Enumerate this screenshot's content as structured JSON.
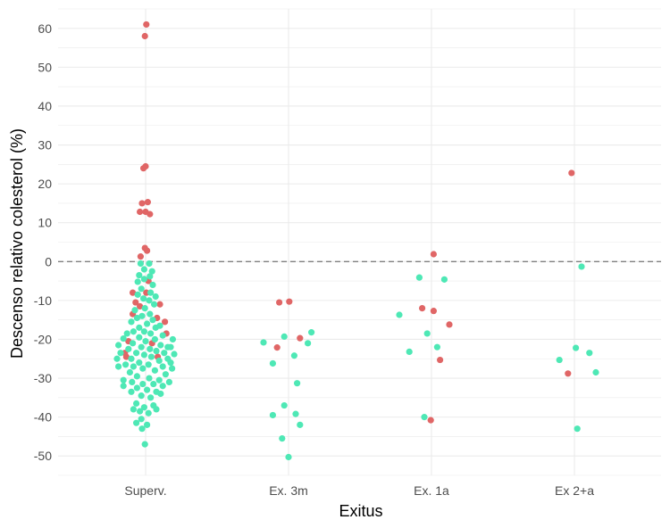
{
  "chart_data": {
    "type": "scatter",
    "xlabel": "Exitus",
    "ylabel": "Descenso relativo colesterol (%)",
    "categories": [
      "Superv.",
      "Ex. 3m",
      "Ex. 1a",
      "Ex 2+a"
    ],
    "ylim": [
      -55,
      65
    ],
    "yticks": [
      60,
      50,
      40,
      30,
      20,
      10,
      0,
      -10,
      -20,
      -30,
      -40,
      -50
    ],
    "grid": true,
    "reference_line": {
      "y": 0,
      "style": "dashed"
    },
    "colors": {
      "red": "#e06666",
      "teal": "#4ee8b5",
      "grid": "#ebebeb",
      "refline": "#7f7f7f"
    },
    "series": [
      {
        "color": "red",
        "points": [
          {
            "category": "Superv.",
            "offset": 0.01,
            "y": 61
          },
          {
            "category": "Superv.",
            "offset": -0.01,
            "y": 58
          },
          {
            "category": "Superv.",
            "offset": -0.03,
            "y": 24
          },
          {
            "category": "Superv.",
            "offset": 0.0,
            "y": 24.5
          },
          {
            "category": "Superv.",
            "offset": -0.05,
            "y": 15
          },
          {
            "category": "Superv.",
            "offset": 0.03,
            "y": 15.3
          },
          {
            "category": "Superv.",
            "offset": -0.08,
            "y": 12.8
          },
          {
            "category": "Superv.",
            "offset": 0.0,
            "y": 12.8
          },
          {
            "category": "Superv.",
            "offset": 0.06,
            "y": 12.2
          },
          {
            "category": "Superv.",
            "offset": -0.01,
            "y": 3.5
          },
          {
            "category": "Superv.",
            "offset": 0.02,
            "y": 2.8
          },
          {
            "category": "Superv.",
            "offset": -0.07,
            "y": 1.3
          },
          {
            "category": "Superv.",
            "offset": 0.04,
            "y": -5
          },
          {
            "category": "Superv.",
            "offset": -0.18,
            "y": -8
          },
          {
            "category": "Superv.",
            "offset": 0.01,
            "y": -8
          },
          {
            "category": "Superv.",
            "offset": -0.14,
            "y": -10.5
          },
          {
            "category": "Superv.",
            "offset": -0.08,
            "y": -11.5
          },
          {
            "category": "Superv.",
            "offset": 0.2,
            "y": -11
          },
          {
            "category": "Superv.",
            "offset": -0.18,
            "y": -13.5
          },
          {
            "category": "Superv.",
            "offset": 0.16,
            "y": -14.5
          },
          {
            "category": "Superv.",
            "offset": 0.27,
            "y": -15.5
          },
          {
            "category": "Superv.",
            "offset": 0.29,
            "y": -18.5
          },
          {
            "category": "Superv.",
            "offset": -0.24,
            "y": -20.5
          },
          {
            "category": "Superv.",
            "offset": 0.09,
            "y": -21
          },
          {
            "category": "Superv.",
            "offset": -0.29,
            "y": -23.5
          },
          {
            "category": "Superv.",
            "offset": -0.27,
            "y": -24.5
          },
          {
            "category": "Superv.",
            "offset": 0.17,
            "y": -24.5
          },
          {
            "category": "Ex. 3m",
            "offset": -0.13,
            "y": -10.5
          },
          {
            "category": "Ex. 3m",
            "offset": 0.01,
            "y": -10.3
          },
          {
            "category": "Ex. 3m",
            "offset": 0.16,
            "y": -19.7
          },
          {
            "category": "Ex. 3m",
            "offset": -0.16,
            "y": -22.1
          },
          {
            "category": "Ex. 1a",
            "offset": 0.03,
            "y": 1.9
          },
          {
            "category": "Ex. 1a",
            "offset": -0.13,
            "y": -12
          },
          {
            "category": "Ex. 1a",
            "offset": 0.03,
            "y": -12.7
          },
          {
            "category": "Ex. 1a",
            "offset": 0.25,
            "y": -16.2
          },
          {
            "category": "Ex. 1a",
            "offset": 0.12,
            "y": -25.3
          },
          {
            "category": "Ex. 1a",
            "offset": -0.01,
            "y": -40.8
          },
          {
            "category": "Ex 2+a",
            "offset": -0.04,
            "y": 22.8
          },
          {
            "category": "Ex 2+a",
            "offset": -0.09,
            "y": -28.8
          }
        ]
      },
      {
        "color": "teal",
        "points": [
          {
            "category": "Superv.",
            "offset": -0.07,
            "y": -0.5
          },
          {
            "category": "Superv.",
            "offset": 0.05,
            "y": -0.5
          },
          {
            "category": "Superv.",
            "offset": -0.02,
            "y": -2
          },
          {
            "category": "Superv.",
            "offset": 0.09,
            "y": -2.5
          },
          {
            "category": "Superv.",
            "offset": -0.09,
            "y": -3.5
          },
          {
            "category": "Superv.",
            "offset": 0.06,
            "y": -3.8
          },
          {
            "category": "Superv.",
            "offset": -0.02,
            "y": -4.5
          },
          {
            "category": "Superv.",
            "offset": -0.11,
            "y": -5.2
          },
          {
            "category": "Superv.",
            "offset": 0.1,
            "y": -6
          },
          {
            "category": "Superv.",
            "offset": -0.06,
            "y": -7
          },
          {
            "category": "Superv.",
            "offset": 0.07,
            "y": -8
          },
          {
            "category": "Superv.",
            "offset": -0.11,
            "y": -8.5
          },
          {
            "category": "Superv.",
            "offset": 0.14,
            "y": -9
          },
          {
            "category": "Superv.",
            "offset": -0.03,
            "y": -9.5
          },
          {
            "category": "Superv.",
            "offset": 0.05,
            "y": -10
          },
          {
            "category": "Superv.",
            "offset": 0.12,
            "y": -11
          },
          {
            "category": "Superv.",
            "offset": -0.01,
            "y": -12
          },
          {
            "category": "Superv.",
            "offset": -0.15,
            "y": -12.5
          },
          {
            "category": "Superv.",
            "offset": 0.06,
            "y": -13.5
          },
          {
            "category": "Superv.",
            "offset": -0.05,
            "y": -14
          },
          {
            "category": "Superv.",
            "offset": -0.12,
            "y": -14.5
          },
          {
            "category": "Superv.",
            "offset": 0.1,
            "y": -15
          },
          {
            "category": "Superv.",
            "offset": -0.2,
            "y": -15.5
          },
          {
            "category": "Superv.",
            "offset": 0.02,
            "y": -16
          },
          {
            "category": "Superv.",
            "offset": 0.2,
            "y": -16.5
          },
          {
            "category": "Superv.",
            "offset": -0.09,
            "y": -17
          },
          {
            "category": "Superv.",
            "offset": 0.14,
            "y": -17
          },
          {
            "category": "Superv.",
            "offset": -0.17,
            "y": -18
          },
          {
            "category": "Superv.",
            "offset": -0.02,
            "y": -18
          },
          {
            "category": "Superv.",
            "offset": 0.07,
            "y": -18.5
          },
          {
            "category": "Superv.",
            "offset": -0.26,
            "y": -18.5
          },
          {
            "category": "Superv.",
            "offset": 0.24,
            "y": -19
          },
          {
            "category": "Superv.",
            "offset": -0.09,
            "y": -19.5
          },
          {
            "category": "Superv.",
            "offset": -0.31,
            "y": -19.8
          },
          {
            "category": "Superv.",
            "offset": 0.13,
            "y": -20
          },
          {
            "category": "Superv.",
            "offset": 0.0,
            "y": -20.5
          },
          {
            "category": "Superv.",
            "offset": 0.38,
            "y": -20
          },
          {
            "category": "Superv.",
            "offset": -0.18,
            "y": -21
          },
          {
            "category": "Superv.",
            "offset": 0.21,
            "y": -21.5
          },
          {
            "category": "Superv.",
            "offset": -0.06,
            "y": -22
          },
          {
            "category": "Superv.",
            "offset": -0.38,
            "y": -21.5
          },
          {
            "category": "Superv.",
            "offset": 0.31,
            "y": -22
          },
          {
            "category": "Superv.",
            "offset": 0.06,
            "y": -22.5
          },
          {
            "category": "Superv.",
            "offset": -0.24,
            "y": -22.5
          },
          {
            "category": "Superv.",
            "offset": 0.35,
            "y": -22
          },
          {
            "category": "Superv.",
            "offset": 0.15,
            "y": -23
          },
          {
            "category": "Superv.",
            "offset": -0.13,
            "y": -23.5
          },
          {
            "category": "Superv.",
            "offset": -0.35,
            "y": -23.5
          },
          {
            "category": "Superv.",
            "offset": 0.26,
            "y": -23.5
          },
          {
            "category": "Superv.",
            "offset": 0.4,
            "y": -23.8
          },
          {
            "category": "Superv.",
            "offset": -0.02,
            "y": -24
          },
          {
            "category": "Superv.",
            "offset": 0.08,
            "y": -24.5
          },
          {
            "category": "Superv.",
            "offset": -0.2,
            "y": -25
          },
          {
            "category": "Superv.",
            "offset": -0.4,
            "y": -25
          },
          {
            "category": "Superv.",
            "offset": 0.31,
            "y": -25
          },
          {
            "category": "Superv.",
            "offset": 0.19,
            "y": -25.5
          },
          {
            "category": "Superv.",
            "offset": -0.09,
            "y": -26
          },
          {
            "category": "Superv.",
            "offset": 0.35,
            "y": -26
          },
          {
            "category": "Superv.",
            "offset": -0.28,
            "y": -26.5
          },
          {
            "category": "Superv.",
            "offset": 0.04,
            "y": -26.5
          },
          {
            "category": "Superv.",
            "offset": -0.17,
            "y": -27
          },
          {
            "category": "Superv.",
            "offset": 0.24,
            "y": -27
          },
          {
            "category": "Superv.",
            "offset": -0.38,
            "y": -27
          },
          {
            "category": "Superv.",
            "offset": 0.37,
            "y": -27.5
          },
          {
            "category": "Superv.",
            "offset": -0.04,
            "y": -27.5
          },
          {
            "category": "Superv.",
            "offset": 0.13,
            "y": -28
          },
          {
            "category": "Superv.",
            "offset": -0.22,
            "y": -28.5
          },
          {
            "category": "Superv.",
            "offset": 0.28,
            "y": -29
          },
          {
            "category": "Superv.",
            "offset": -0.12,
            "y": -29.5
          },
          {
            "category": "Superv.",
            "offset": 0.05,
            "y": -30
          },
          {
            "category": "Superv.",
            "offset": -0.31,
            "y": -30.5
          },
          {
            "category": "Superv.",
            "offset": 0.19,
            "y": -30.5
          },
          {
            "category": "Superv.",
            "offset": -0.19,
            "y": -31
          },
          {
            "category": "Superv.",
            "offset": 0.33,
            "y": -31
          },
          {
            "category": "Superv.",
            "offset": -0.04,
            "y": -31.5
          },
          {
            "category": "Superv.",
            "offset": 0.11,
            "y": -31.5
          },
          {
            "category": "Superv.",
            "offset": -0.31,
            "y": -32
          },
          {
            "category": "Superv.",
            "offset": 0.24,
            "y": -32
          },
          {
            "category": "Superv.",
            "offset": -0.12,
            "y": -32.5
          },
          {
            "category": "Superv.",
            "offset": 0.02,
            "y": -33
          },
          {
            "category": "Superv.",
            "offset": 0.15,
            "y": -33.5
          },
          {
            "category": "Superv.",
            "offset": -0.2,
            "y": -33.5
          },
          {
            "category": "Superv.",
            "offset": 0.21,
            "y": -34
          },
          {
            "category": "Superv.",
            "offset": -0.06,
            "y": -34.5
          },
          {
            "category": "Superv.",
            "offset": 0.07,
            "y": -35
          },
          {
            "category": "Superv.",
            "offset": -0.13,
            "y": -36.5
          },
          {
            "category": "Superv.",
            "offset": 0.11,
            "y": -37
          },
          {
            "category": "Superv.",
            "offset": -0.02,
            "y": -37.5
          },
          {
            "category": "Superv.",
            "offset": -0.17,
            "y": -38
          },
          {
            "category": "Superv.",
            "offset": 0.15,
            "y": -38
          },
          {
            "category": "Superv.",
            "offset": -0.08,
            "y": -38.5
          },
          {
            "category": "Superv.",
            "offset": 0.04,
            "y": -39
          },
          {
            "category": "Superv.",
            "offset": -0.06,
            "y": -40.5
          },
          {
            "category": "Superv.",
            "offset": -0.13,
            "y": -41.5
          },
          {
            "category": "Superv.",
            "offset": 0.02,
            "y": -42
          },
          {
            "category": "Superv.",
            "offset": -0.05,
            "y": -43
          },
          {
            "category": "Superv.",
            "offset": -0.01,
            "y": -47
          },
          {
            "category": "Ex. 3m",
            "offset": -0.35,
            "y": -20.8
          },
          {
            "category": "Ex. 3m",
            "offset": -0.06,
            "y": -19.3
          },
          {
            "category": "Ex. 3m",
            "offset": 0.27,
            "y": -21
          },
          {
            "category": "Ex. 3m",
            "offset": 0.32,
            "y": -18.2
          },
          {
            "category": "Ex. 3m",
            "offset": 0.08,
            "y": -24.2
          },
          {
            "category": "Ex. 3m",
            "offset": -0.22,
            "y": -26.2
          },
          {
            "category": "Ex. 3m",
            "offset": 0.12,
            "y": -31.3
          },
          {
            "category": "Ex. 3m",
            "offset": -0.06,
            "y": -37
          },
          {
            "category": "Ex. 3m",
            "offset": -0.22,
            "y": -39.5
          },
          {
            "category": "Ex. 3m",
            "offset": 0.1,
            "y": -39.2
          },
          {
            "category": "Ex. 3m",
            "offset": 0.16,
            "y": -42
          },
          {
            "category": "Ex. 3m",
            "offset": -0.09,
            "y": -45.5
          },
          {
            "category": "Ex. 3m",
            "offset": 0.0,
            "y": -50.3
          },
          {
            "category": "Ex. 1a",
            "offset": -0.17,
            "y": -4.1
          },
          {
            "category": "Ex. 1a",
            "offset": 0.18,
            "y": -4.6
          },
          {
            "category": "Ex. 1a",
            "offset": -0.45,
            "y": -13.7
          },
          {
            "category": "Ex. 1a",
            "offset": -0.06,
            "y": -18.5
          },
          {
            "category": "Ex. 1a",
            "offset": -0.31,
            "y": -23.2
          },
          {
            "category": "Ex. 1a",
            "offset": 0.08,
            "y": -22
          },
          {
            "category": "Ex. 1a",
            "offset": -0.1,
            "y": -40
          },
          {
            "category": "Ex 2+a",
            "offset": 0.1,
            "y": -1.3
          },
          {
            "category": "Ex 2+a",
            "offset": -0.21,
            "y": -25.3
          },
          {
            "category": "Ex 2+a",
            "offset": 0.02,
            "y": -22.2
          },
          {
            "category": "Ex 2+a",
            "offset": 0.21,
            "y": -23.5
          },
          {
            "category": "Ex 2+a",
            "offset": 0.3,
            "y": -28.5
          },
          {
            "category": "Ex 2+a",
            "offset": 0.04,
            "y": -43
          }
        ]
      }
    ]
  }
}
